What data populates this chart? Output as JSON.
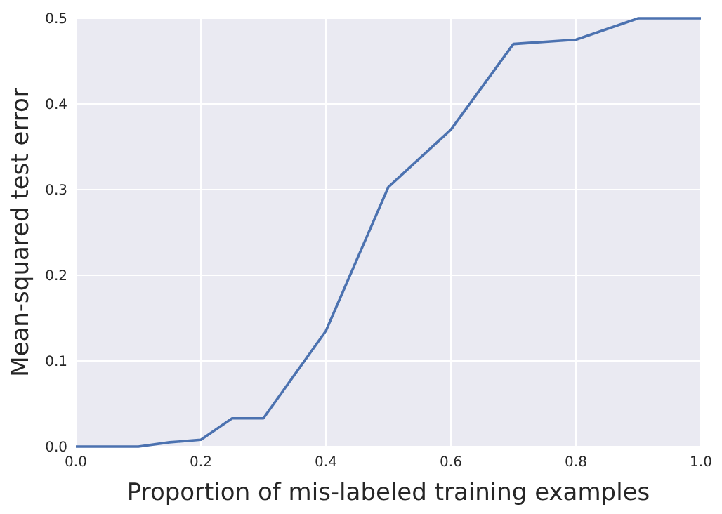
{
  "chart_data": {
    "type": "line",
    "xlabel": "Proportion of mis-labeled training examples",
    "ylabel": "Mean-squared test error",
    "x": [
      0,
      0.1,
      0.15,
      0.2,
      0.25,
      0.3,
      0.4,
      0.5,
      0.6,
      0.7,
      0.8,
      0.9,
      1.0
    ],
    "series": [
      {
        "color": "#4c72b0",
        "values": [
          0,
          0,
          0.005,
          0.008,
          0.033,
          0.033,
          0.135,
          0.303,
          0.37,
          0.47,
          0.475,
          0.5,
          0.5
        ]
      }
    ],
    "xlim": [
      0,
      1.0
    ],
    "ylim": [
      0,
      0.5
    ],
    "xticks": [
      {
        "value": 0,
        "label": "0.0"
      },
      0.2,
      0.4,
      0.6,
      0.8,
      {
        "value": 1,
        "label": "1.0"
      }
    ],
    "yticks": [
      {
        "value": 0,
        "label": "0.0"
      },
      0.1,
      0.2,
      0.3,
      0.4,
      0.5
    ],
    "grid": true,
    "marker": "none",
    "line_style": "solid"
  }
}
